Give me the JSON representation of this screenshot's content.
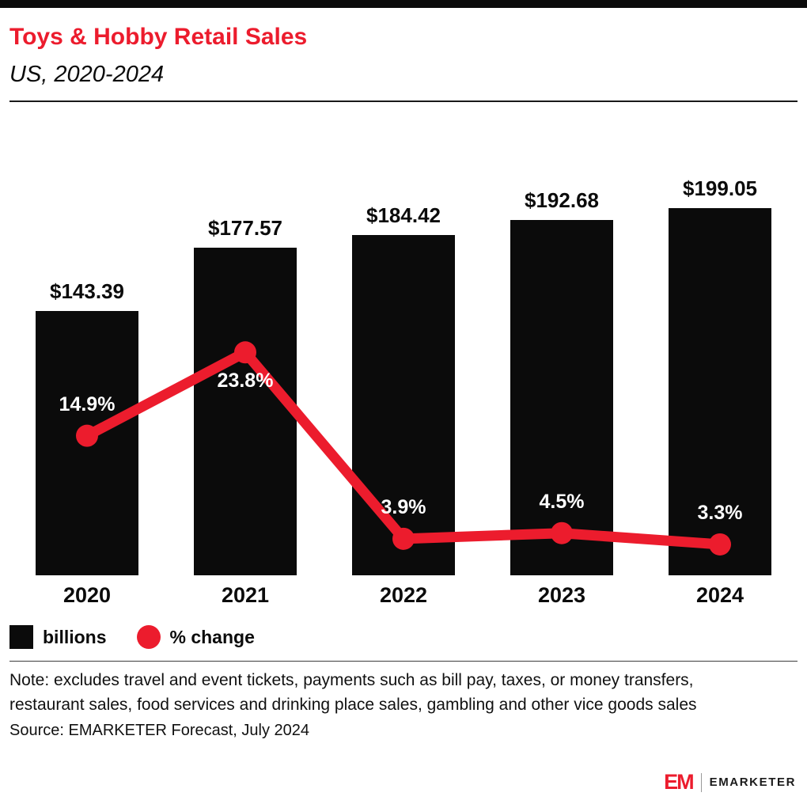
{
  "header": {
    "title": "Toys & Hobby Retail Sales",
    "subtitle": "US, 2020-2024"
  },
  "chart_data": {
    "type": "bar+line",
    "categories": [
      "2020",
      "2021",
      "2022",
      "2023",
      "2024"
    ],
    "series": [
      {
        "name": "billions",
        "type": "bar",
        "color": "#0b0b0b",
        "values": [
          143.39,
          177.57,
          184.42,
          192.68,
          199.05
        ],
        "labels": [
          "$143.39",
          "$177.57",
          "$184.42",
          "$192.68",
          "$199.05"
        ]
      },
      {
        "name": "% change",
        "type": "line",
        "color": "#ec1c2d",
        "values": [
          14.9,
          23.8,
          3.9,
          4.5,
          3.3
        ],
        "labels": [
          "14.9%",
          "23.8%",
          "3.9%",
          "4.5%",
          "3.3%"
        ],
        "label_side": [
          "above",
          "below",
          "above",
          "above",
          "above"
        ]
      }
    ],
    "title": "Toys & Hobby Retail Sales",
    "subtitle": "US, 2020-2024",
    "xlabel": "",
    "ylabel": "",
    "grid": false,
    "legend_position": "bottom-left",
    "ylim_bar": [
      0,
      249
    ],
    "ylim_line": [
      0,
      49
    ]
  },
  "legend": {
    "items": [
      {
        "label": "billions",
        "swatch": "square",
        "color": "#0b0b0b"
      },
      {
        "label": "% change",
        "swatch": "circle",
        "color": "#ec1c2d"
      }
    ]
  },
  "note": "Note: excludes travel and event tickets, payments such as bill pay, taxes, or money transfers, restaurant sales, food services and drinking place sales, gambling and other vice goods sales",
  "source": "Source: EMARKETER Forecast, July 2024",
  "footer": {
    "logo_text": "EM",
    "brand": "EMARKETER"
  },
  "colors": {
    "accent_red": "#ec1c2d",
    "bar_black": "#0b0b0b"
  }
}
